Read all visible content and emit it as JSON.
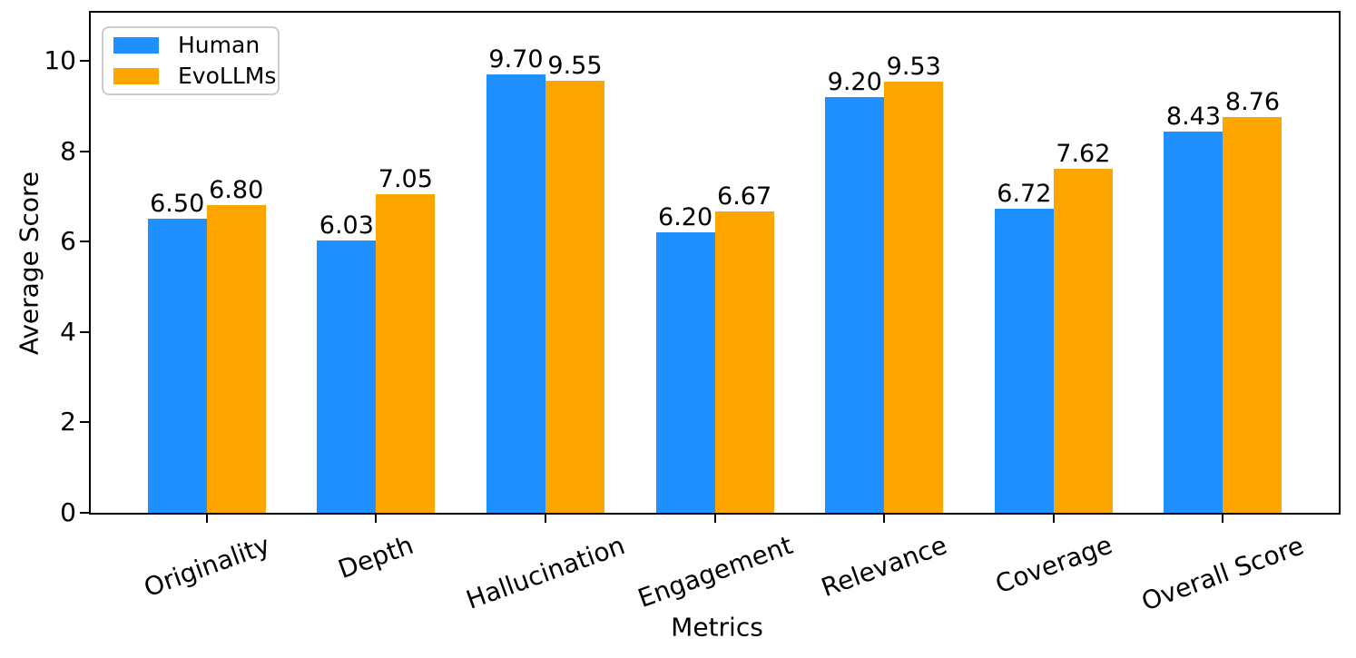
{
  "chart_data": {
    "type": "bar",
    "title": "",
    "xlabel": "Metrics",
    "ylabel": "Average Score",
    "categories": [
      "Originality",
      "Depth",
      "Hallucination",
      "Engagement",
      "Relevance",
      "Coverage",
      "Overall Score"
    ],
    "series": [
      {
        "name": "Human",
        "color": "#1E90FF",
        "values": [
          6.5,
          6.03,
          9.7,
          6.2,
          9.2,
          6.72,
          8.43
        ],
        "value_labels": [
          "6.50",
          "6.03",
          "9.70",
          "6.20",
          "9.20",
          "6.72",
          "8.43"
        ]
      },
      {
        "name": "EvoLLMs",
        "color": "#FFA500",
        "values": [
          6.8,
          7.05,
          9.55,
          6.67,
          9.53,
          7.62,
          8.76
        ],
        "value_labels": [
          "6.80",
          "7.05",
          "9.55",
          "6.67",
          "9.53",
          "7.62",
          "8.76"
        ]
      }
    ],
    "y_axis": {
      "ticks": [
        0,
        2,
        4,
        6,
        8,
        10
      ],
      "lim": [
        0,
        11.07
      ]
    },
    "x_tick_rotation_deg": 20,
    "grid": false,
    "bar_value_labels_shown": true,
    "legend": {
      "position": "upper-left",
      "items": [
        "Human",
        "EvoLLMs"
      ]
    },
    "colors": {
      "axis": "#000000",
      "legend_border": "#cccccc",
      "background": "#ffffff"
    }
  }
}
